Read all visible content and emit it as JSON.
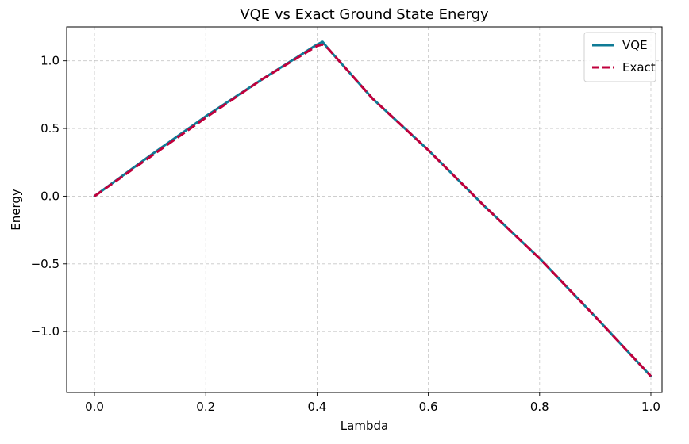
{
  "chart_data": {
    "type": "line",
    "title": "VQE vs Exact Ground State Energy",
    "xlabel": "Lambda",
    "ylabel": "Energy",
    "xlim": [
      -0.05,
      1.02
    ],
    "ylim": [
      -1.45,
      1.25
    ],
    "xticks": [
      0.0,
      0.2,
      0.4,
      0.6,
      0.8,
      1.0
    ],
    "xtick_labels": [
      "0.0",
      "0.2",
      "0.4",
      "0.6",
      "0.8",
      "1.0"
    ],
    "yticks": [
      -1.0,
      -0.5,
      0.0,
      0.5,
      1.0
    ],
    "ytick_labels": [
      "−1.0",
      "−0.5",
      "0.0",
      "0.5",
      "1.0"
    ],
    "grid": true,
    "legend_position": "top-right",
    "series": [
      {
        "name": "VQE",
        "style": "solid",
        "color": "#0f7b96",
        "x": [
          0.0,
          0.1,
          0.2,
          0.3,
          0.4,
          0.41,
          0.42,
          0.5,
          0.6,
          0.7,
          0.8,
          0.9,
          1.0
        ],
        "y": [
          0.0,
          0.3,
          0.59,
          0.86,
          1.12,
          1.14,
          1.09,
          0.72,
          0.34,
          -0.07,
          -0.46,
          -0.89,
          -1.33
        ]
      },
      {
        "name": "Exact",
        "style": "dashed",
        "color": "#c0003c",
        "x": [
          0.0,
          0.1,
          0.2,
          0.3,
          0.4,
          0.41,
          0.42,
          0.5,
          0.6,
          0.7,
          0.8,
          0.9,
          1.0
        ],
        "y": [
          0.0,
          0.29,
          0.58,
          0.86,
          1.11,
          1.12,
          1.09,
          0.72,
          0.34,
          -0.07,
          -0.46,
          -0.89,
          -1.33
        ]
      }
    ]
  }
}
